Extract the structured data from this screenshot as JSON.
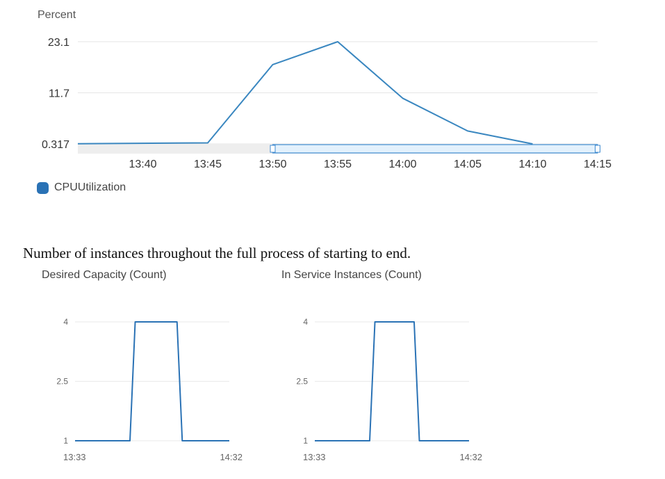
{
  "chart_data": [
    {
      "type": "line",
      "title": "",
      "ylabel": "Percent",
      "xlabel": "",
      "x_ticks": [
        "13:40",
        "13:45",
        "13:50",
        "13:55",
        "14:00",
        "14:05",
        "14:10",
        "14:15"
      ],
      "y_ticks": [
        "23.1",
        "11.7",
        "0.317"
      ],
      "ylim": [
        0.317,
        23.1
      ],
      "grid": true,
      "legend_position": "bottom-left",
      "series": [
        {
          "name": "CPUUtilization",
          "color": "#3a87c0",
          "x": [
            "13:35",
            "13:45",
            "13:50",
            "13:55",
            "14:00",
            "14:05",
            "14:10"
          ],
          "values": [
            0.35,
            0.55,
            18.0,
            23.1,
            10.5,
            3.2,
            0.317
          ]
        }
      ],
      "range_selector": {
        "from": "13:50",
        "to": "14:15"
      }
    },
    {
      "type": "line",
      "title": "Desired Capacity (Count)",
      "y_ticks": [
        "4",
        "2.5",
        "1"
      ],
      "x_ticks": [
        "13:33",
        "14:32"
      ],
      "ylim": [
        1,
        4
      ],
      "grid": true,
      "series": [
        {
          "color": "#2a72b5",
          "x": [
            "13:33",
            "13:54",
            "13:56",
            "14:12",
            "14:14",
            "14:32"
          ],
          "values": [
            1,
            1,
            4,
            4,
            1,
            1
          ]
        }
      ]
    },
    {
      "type": "line",
      "title": "In Service Instances (Count)",
      "y_ticks": [
        "4",
        "2.5",
        "1"
      ],
      "x_ticks": [
        "13:33",
        "14:32"
      ],
      "ylim": [
        1,
        4
      ],
      "grid": true,
      "series": [
        {
          "color": "#2a72b5",
          "x": [
            "13:33",
            "13:54",
            "13:56",
            "14:11",
            "14:13",
            "14:32"
          ],
          "values": [
            1,
            1,
            4,
            4,
            1,
            1
          ]
        }
      ]
    }
  ],
  "caption": "Number of instances throughout the full process of starting to end."
}
